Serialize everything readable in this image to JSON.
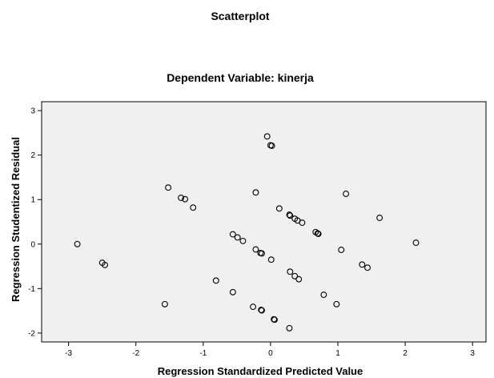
{
  "chart_data": {
    "type": "scatter",
    "title": "Scatterplot",
    "subtitle": "Dependent Variable: kinerja",
    "xlabel": "Regression Standardized Predicted Value",
    "ylabel": "Regression Studentized Residual",
    "xlim": [
      -3.4,
      3.2
    ],
    "ylim": [
      -2.2,
      3.2
    ],
    "xticks": [
      -3,
      -2,
      -1,
      0,
      1,
      2,
      3
    ],
    "xtick_labels": [
      "-3",
      "-2",
      "-1",
      "0",
      "1",
      "2",
      "3"
    ],
    "yticks": [
      -2,
      -1,
      0,
      1,
      2,
      3
    ],
    "ytick_labels": [
      "-2",
      "-1",
      "0",
      "1",
      "2",
      "3"
    ],
    "grid": false,
    "plot_background": "#f0f0f0",
    "marker": "hollow-circle",
    "marker_color": "#000000",
    "points": [
      {
        "x": -2.87,
        "y": 0.0
      },
      {
        "x": -2.5,
        "y": -0.42
      },
      {
        "x": -2.46,
        "y": -0.47
      },
      {
        "x": -1.57,
        "y": -1.35
      },
      {
        "x": -1.52,
        "y": 1.27
      },
      {
        "x": -1.33,
        "y": 1.04
      },
      {
        "x": -1.27,
        "y": 1.01
      },
      {
        "x": -1.15,
        "y": 0.82
      },
      {
        "x": -0.81,
        "y": -0.82
      },
      {
        "x": -0.56,
        "y": -1.08
      },
      {
        "x": -0.56,
        "y": 0.22
      },
      {
        "x": -0.49,
        "y": 0.15
      },
      {
        "x": -0.41,
        "y": 0.07
      },
      {
        "x": -0.26,
        "y": -1.41
      },
      {
        "x": -0.22,
        "y": 1.16
      },
      {
        "x": -0.22,
        "y": -0.12
      },
      {
        "x": -0.15,
        "y": -0.2
      },
      {
        "x": -0.13,
        "y": -0.21
      },
      {
        "x": -0.14,
        "y": -1.48
      },
      {
        "x": -0.13,
        "y": -1.49
      },
      {
        "x": -0.05,
        "y": 2.42
      },
      {
        "x": 0.0,
        "y": 2.22
      },
      {
        "x": 0.02,
        "y": 2.21
      },
      {
        "x": 0.01,
        "y": -0.35
      },
      {
        "x": 0.05,
        "y": -1.69
      },
      {
        "x": 0.06,
        "y": -1.7
      },
      {
        "x": 0.13,
        "y": 0.8
      },
      {
        "x": 0.28,
        "y": 0.66
      },
      {
        "x": 0.29,
        "y": 0.64
      },
      {
        "x": 0.29,
        "y": -0.62
      },
      {
        "x": 0.28,
        "y": -1.89
      },
      {
        "x": 0.36,
        "y": 0.57
      },
      {
        "x": 0.4,
        "y": 0.53
      },
      {
        "x": 0.36,
        "y": -0.72
      },
      {
        "x": 0.42,
        "y": -0.79
      },
      {
        "x": 0.47,
        "y": 0.48
      },
      {
        "x": 0.67,
        "y": 0.27
      },
      {
        "x": 0.7,
        "y": 0.24
      },
      {
        "x": 0.71,
        "y": 0.23
      },
      {
        "x": 0.79,
        "y": -1.14
      },
      {
        "x": 0.98,
        "y": -1.35
      },
      {
        "x": 1.05,
        "y": -0.13
      },
      {
        "x": 1.12,
        "y": 1.13
      },
      {
        "x": 1.36,
        "y": -0.46
      },
      {
        "x": 1.44,
        "y": -0.53
      },
      {
        "x": 1.62,
        "y": 0.59
      },
      {
        "x": 2.16,
        "y": 0.03
      }
    ]
  }
}
